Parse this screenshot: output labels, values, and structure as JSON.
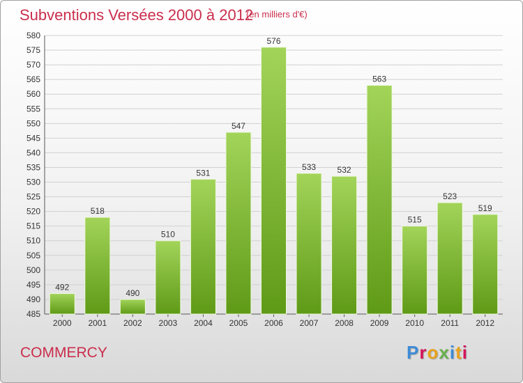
{
  "header": {
    "title": "Subventions Versées 2000 à 2012",
    "unit": "(en milliers d'€)"
  },
  "footer": {
    "commune": "COMMERCY",
    "logo_text": "Proxiti"
  },
  "colors": {
    "title": "#ca2e4c",
    "bar_top": "#a2d45a",
    "bar_bottom": "#5f9a17",
    "grid": "#d0d0d0"
  },
  "chart_data": {
    "type": "bar",
    "title": "Subventions Versées 2000 à 2012",
    "subtitle": "(en milliers d'€)",
    "categories": [
      "2000",
      "2001",
      "2002",
      "2003",
      "2004",
      "2005",
      "2006",
      "2007",
      "2008",
      "2009",
      "2010",
      "2011",
      "2012"
    ],
    "values": [
      492,
      518,
      490,
      510,
      531,
      547,
      576,
      533,
      532,
      563,
      515,
      523,
      519
    ],
    "ylim": [
      485,
      580
    ],
    "ytick_step": 5,
    "grid": true,
    "data_labels": true
  }
}
